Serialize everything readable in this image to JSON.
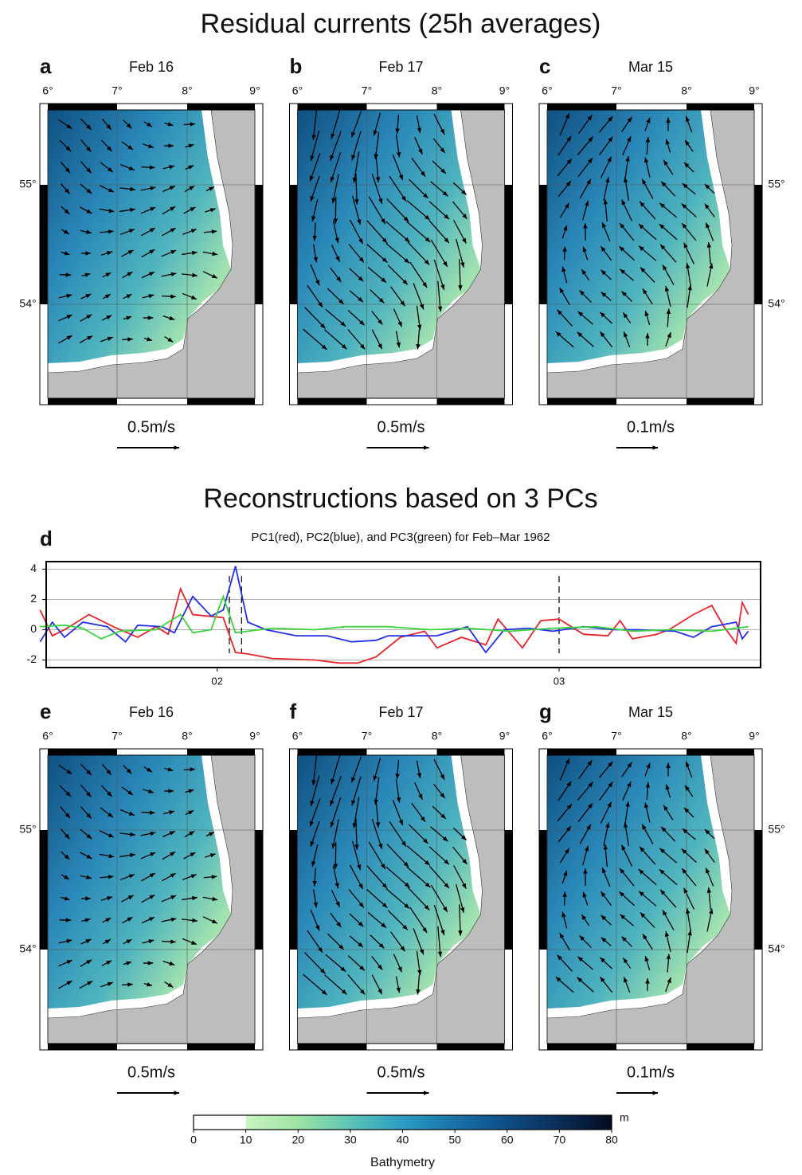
{
  "title": "Residual currents (25h averages)",
  "lon_ticks": [
    "6°",
    "7°",
    "8°",
    "9°"
  ],
  "lat_ticks": [
    "55°",
    "54°"
  ],
  "maps_top": [
    {
      "letter": "a",
      "date": "Feb 16",
      "scale": "0.5m/s"
    },
    {
      "letter": "b",
      "date": "Feb 17",
      "scale": "0.5m/s"
    },
    {
      "letter": "c",
      "date": "Mar 15",
      "scale": "0.1m/s"
    }
  ],
  "subtitle": "Reconstructions based on 3 PCs",
  "chart_data": {
    "type": "line",
    "letter": "d",
    "title": "PC1(red), PC2(blue), and PC3(green) for Feb–Mar 1962",
    "xlim": [
      -14,
      44.5
    ],
    "xticks": [
      {
        "value": 0,
        "label": "02"
      },
      {
        "value": 28,
        "label": "03"
      }
    ],
    "ylim": [
      -2.5,
      4.5
    ],
    "yticks": [
      -2,
      0,
      2,
      4
    ],
    "grid": true,
    "vlines": [
      1,
      2,
      28
    ],
    "series": [
      {
        "color": "#e8252b",
        "x": [
          -14.5,
          -13.5,
          -12.5,
          -10.5,
          -8.5,
          -6.5,
          -5,
          -4,
          -3,
          -2,
          0.5,
          1.5,
          2.5,
          4.5,
          8,
          10,
          11.5,
          13,
          15,
          17,
          18,
          20,
          22,
          23,
          25,
          26.5,
          28,
          30,
          32,
          33,
          34,
          36,
          37,
          39,
          40.5,
          41.5,
          42.5,
          43,
          43.5
        ],
        "values": [
          1.3,
          -0.4,
          0,
          1.0,
          0.2,
          -0.5,
          0.2,
          -0.3,
          2.7,
          1.0,
          0.8,
          -1.5,
          -1.6,
          -1.9,
          -2.0,
          -2.2,
          -2.2,
          -1.8,
          -0.5,
          -0.1,
          -1.2,
          -0.5,
          -1.0,
          0.7,
          -1.2,
          0.6,
          0.7,
          -0.3,
          -0.4,
          0.6,
          -0.6,
          -0.3,
          0,
          1.0,
          1.6,
          0.2,
          -0.9,
          1.8,
          1.0
        ]
      },
      {
        "color": "#2430e6",
        "x": [
          -14.5,
          -13.5,
          -12.5,
          -11,
          -9,
          -7.5,
          -6.5,
          -4.5,
          -3.5,
          -2,
          -0.5,
          0.5,
          1.5,
          2.5,
          4,
          6.5,
          9,
          11,
          13,
          14,
          18,
          20.5,
          22,
          23.5,
          25.5,
          27.5,
          30,
          32.5,
          34.5,
          37.5,
          39,
          40.5,
          42.5,
          43,
          43.5
        ],
        "values": [
          -0.8,
          0.5,
          -0.5,
          0.5,
          0.2,
          -0.8,
          0.3,
          0.2,
          -0.2,
          2.2,
          0.9,
          1.3,
          4.2,
          0.5,
          0,
          -0.4,
          -0.4,
          -0.8,
          -0.7,
          -0.4,
          -0.4,
          0.2,
          -1.5,
          0,
          0.1,
          -0.1,
          0.2,
          0,
          0,
          -0.1,
          -0.5,
          0.2,
          0.5,
          -0.6,
          -0.1
        ]
      },
      {
        "color": "#3ad43e",
        "x": [
          -14.5,
          -12.5,
          -11,
          -9.5,
          -8,
          -5,
          -3,
          -2,
          -0.5,
          0.5,
          1.5,
          4.5,
          8,
          10.5,
          14,
          17.5,
          20.5,
          24,
          27.5,
          31,
          34,
          37,
          40.5,
          43.5
        ],
        "values": [
          0.2,
          0.3,
          0.1,
          -0.6,
          -0.1,
          0,
          1.0,
          -0.2,
          0,
          2.2,
          -0.2,
          0.1,
          0,
          0.2,
          0.2,
          0,
          0.1,
          -0.1,
          0.1,
          0.2,
          -0.1,
          0,
          -0.1,
          0.2
        ]
      }
    ]
  },
  "maps_bottom": [
    {
      "letter": "e",
      "date": "Feb 16",
      "scale": "0.5m/s"
    },
    {
      "letter": "f",
      "date": "Feb 17",
      "scale": "0.5m/s"
    },
    {
      "letter": "g",
      "date": "Mar 15",
      "scale": "0.1m/s"
    }
  ],
  "colorbar": {
    "lim": [
      0,
      80
    ],
    "ticks": [
      0,
      10,
      20,
      30,
      40,
      50,
      60,
      70,
      80
    ],
    "unit": "m",
    "label": "Bathymetry"
  }
}
